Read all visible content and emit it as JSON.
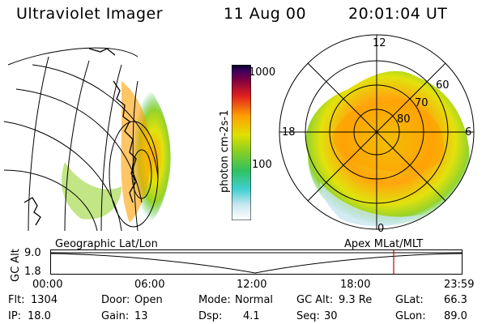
{
  "header": {
    "instrument": "Ultraviolet Imager",
    "date": "11 Aug 00",
    "time": "20:01:04 UT"
  },
  "colorbar": {
    "label": "photon cm-2s-1",
    "ticks": [
      "1000",
      "100"
    ]
  },
  "polar_plot": {
    "mlt_labels": [
      "12",
      "18",
      "6",
      "0"
    ],
    "mlat_labels": [
      "60",
      "70",
      "80"
    ]
  },
  "timeline": {
    "left_label": "Geographic Lat/Lon",
    "right_label": "Apex MLat/MLT",
    "y_axis_label": "GC Alt",
    "y_ticks": [
      "9.0",
      "1.8"
    ],
    "x_ticks": [
      "00:00",
      "06:00",
      "12:00",
      "18:00",
      "23:59"
    ]
  },
  "info": {
    "flt": {
      "label": "Flt:",
      "value": "1304"
    },
    "ip": {
      "label": "IP:",
      "value": "18.0"
    },
    "door": {
      "label": "Door:",
      "value": "Open"
    },
    "gain": {
      "label": "Gain:",
      "value": "13"
    },
    "mode": {
      "label": "Mode:",
      "value": "Normal"
    },
    "dsp": {
      "label": "Dsp:",
      "value": "4.1"
    },
    "gcalt": {
      "label": "GC Alt:",
      "value": "9.3 Re"
    },
    "seq": {
      "label": "Seq:",
      "value": "30"
    },
    "glat": {
      "label": "GLat:",
      "value": "66.3"
    },
    "glon": {
      "label": "GLon:",
      "value": "89.0"
    }
  },
  "colors": {
    "marker": "#cc0000",
    "scale": [
      "#ffffff",
      "#c8e6f0",
      "#40d0d0",
      "#30c060",
      "#90d020",
      "#e0e000",
      "#ffa000",
      "#e02020",
      "#800040",
      "#400060",
      "#000020"
    ]
  }
}
